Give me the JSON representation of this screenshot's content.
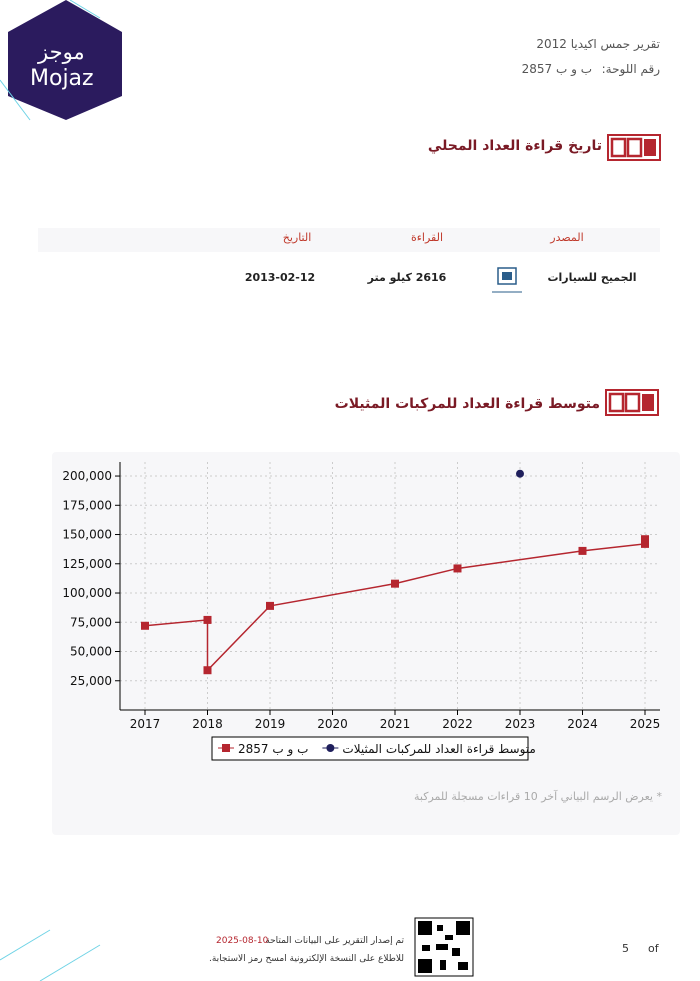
{
  "logo": {
    "arabic": "موجز",
    "latin": "Mojaz"
  },
  "header": {
    "title": "تقرير جمس اكيديا 2012",
    "plate_label": "رقم اللوحة:",
    "plate": "ب و ب 2857"
  },
  "odometer_history": {
    "title": "تاريخ قراءة العداد المحلي",
    "table": {
      "headers": [
        "المصدر",
        "القراءة",
        "التاريخ"
      ],
      "rows": [
        [
          "الجميح للسيارات",
          "2616 كيلو متر",
          "2013-02-12"
        ]
      ]
    }
  },
  "similar_vehicles": {
    "title": "متوسط قراءة العداد للمركبات المثيلات",
    "note": "* يعرض الرسم البياني آخر 10 قراءات مسجلة للمركبة"
  },
  "chart_data": {
    "type": "line",
    "series": [
      {
        "name": "ب و ب 2857",
        "color": "#b5262f",
        "marker": "square",
        "x": [
          2017,
          2018,
          2018,
          2019,
          2021,
          2022,
          2024,
          2025,
          2025
        ],
        "values": [
          72000,
          77000,
          34000,
          89000,
          108000,
          121000,
          136000,
          142000,
          146000
        ]
      },
      {
        "name": "متوسط قراءة العداد للمركبات المثيلات",
        "color": "#1f1f5c",
        "marker": "circle",
        "x": [
          2023
        ],
        "values": [
          202000
        ]
      }
    ],
    "xlim": [
      2016.6,
      2025.24
    ],
    "xticks": [
      2017,
      2018,
      2019,
      2020,
      2021,
      2022,
      2023,
      2024,
      2025
    ],
    "ylim": [
      0,
      212000
    ],
    "yticks": [
      {
        "value": 25000,
        "label": "25,000"
      },
      {
        "value": 50000,
        "label": "50,000"
      },
      {
        "value": 75000,
        "label": "75,000"
      },
      {
        "value": 100000,
        "label": "100,000"
      },
      {
        "value": 125000,
        "label": "125,000"
      },
      {
        "value": 150000,
        "label": "150,000"
      },
      {
        "value": 175000,
        "label": "175,000"
      },
      {
        "value": 200000,
        "label": "200,000"
      }
    ],
    "grid": true
  },
  "footer": {
    "issued": "تم إصدار التقرير على البيانات المتاحة",
    "date": "2025-08-10",
    "scan": "للاطلاع على النسخة الإلكترونية امسح رمز الاستجابة.",
    "page": "5",
    "of": "of"
  }
}
